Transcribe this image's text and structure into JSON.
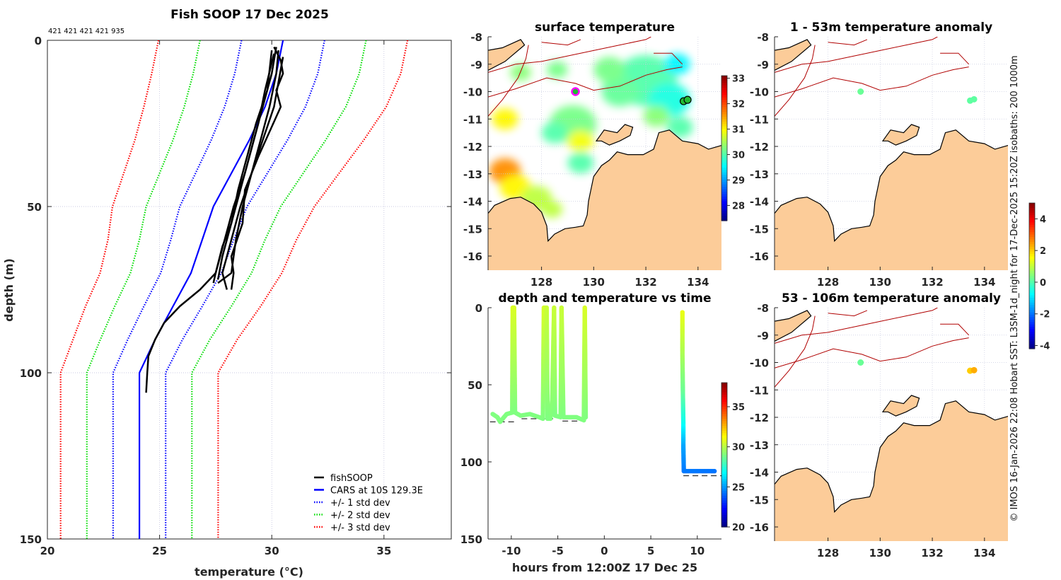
{
  "figure": {
    "side_note": "© IMOS 16-Jan-2026 22:08 Hobart SST: L3SM-1d_night for 17-Dec-2025 15:20Z isobaths: 200  1000m"
  },
  "chart_data": [
    {
      "id": "profile",
      "type": "line",
      "title": "Fish SOOP 17 Dec 2025",
      "annotation": "421 421 421 421 935",
      "xlabel": "temperature (°C)",
      "xlabel_main": "temperature (",
      "xlabel_sup": "o",
      "xlabel_unit": "C)",
      "ylabel": "depth (m)",
      "xlim": [
        20,
        38
      ],
      "ylim": [
        0,
        150
      ],
      "y_reversed": true,
      "xticks": [
        "20",
        "25",
        "30",
        "35"
      ],
      "yticks": [
        "0",
        "50",
        "100",
        "150"
      ],
      "grid": true,
      "legend_position": "bottom-right",
      "legend": [
        "fishSOOP",
        "CARS at 10S 129.3E",
        "+/- 1 std dev",
        "+/- 2 std dev",
        "+/- 3 std dev"
      ],
      "colors": {
        "fishsoop": "#000000",
        "cars": "#0000ff",
        "std1": "#0000ff",
        "std2": "#00dd00",
        "std3": "#ff0000"
      },
      "cars": {
        "depth": [
          0,
          10,
          20,
          30,
          40,
          50,
          60,
          70,
          80,
          90,
          100,
          150
        ],
        "mean": [
          30.5,
          30.2,
          29.7,
          29.0,
          28.2,
          27.4,
          26.9,
          26.4,
          25.6,
          24.8,
          24.1,
          24.1
        ],
        "std": [
          1.85,
          1.85,
          1.8,
          1.7,
          1.6,
          1.5,
          1.4,
          1.35,
          1.3,
          1.22,
          1.17,
          1.17
        ]
      },
      "fishsoop_profiles": [
        {
          "depth": [
            2,
            10,
            20,
            30,
            40,
            50,
            55,
            60,
            65,
            70,
            73
          ],
          "temp": [
            30.2,
            30.0,
            29.6,
            29.2,
            28.8,
            28.3,
            28.1,
            27.9,
            27.7,
            27.5,
            27.4
          ]
        },
        {
          "depth": [
            3,
            10,
            20,
            30,
            40,
            50,
            60,
            70,
            75
          ],
          "temp": [
            30.3,
            30.2,
            29.9,
            29.5,
            29.1,
            28.6,
            28.2,
            27.8,
            28.0
          ]
        },
        {
          "depth": [
            4,
            15,
            25,
            35,
            45,
            55,
            65,
            72
          ],
          "temp": [
            30.1,
            29.7,
            29.4,
            29.0,
            28.6,
            28.2,
            27.8,
            27.6
          ]
        },
        {
          "depth": [
            5,
            20,
            30,
            40,
            50,
            60,
            70,
            73
          ],
          "temp": [
            30.5,
            30.1,
            29.6,
            29.1,
            28.7,
            28.4,
            28.2,
            27.6
          ]
        },
        {
          "depth": [
            2,
            6,
            10,
            15,
            20,
            35,
            45,
            55,
            65,
            70,
            75
          ],
          "temp": [
            30.1,
            30.4,
            30.5,
            30.2,
            30.4,
            29.4,
            28.8,
            28.7,
            28.2,
            28.3,
            28.2
          ]
        },
        {
          "depth": [
            3,
            15,
            25,
            35,
            45,
            55,
            62,
            70,
            75,
            80,
            85,
            90,
            95,
            100,
            106
          ],
          "temp": [
            30.0,
            29.8,
            29.3,
            28.9,
            28.5,
            28.2,
            27.8,
            27.5,
            26.8,
            25.9,
            25.2,
            24.8,
            24.5,
            24.45,
            24.4
          ]
        }
      ]
    },
    {
      "id": "sst_map",
      "type": "heatmap",
      "title": "surface temperature",
      "xlim": [
        125.95,
        134.9
      ],
      "ylim": [
        -16.5,
        -8
      ],
      "xticks": [
        "128",
        "130",
        "132",
        "134"
      ],
      "yticks": [
        "-8",
        "-9",
        "-10",
        "-11",
        "-12",
        "-13",
        "-14",
        "-15",
        "-16"
      ],
      "colorbar": {
        "range": [
          27.4,
          33.1
        ],
        "ticks": [
          "28",
          "29",
          "30",
          "31",
          "32",
          "33"
        ]
      },
      "sst_patches": [
        [
          132.0,
          -9.6,
          1.2,
          30.0
        ],
        [
          132.9,
          -10.3,
          0.8,
          29.7
        ],
        [
          133.2,
          -9.0,
          0.5,
          29.5
        ],
        [
          131.0,
          -10.0,
          0.7,
          30.1
        ],
        [
          130.6,
          -9.2,
          0.6,
          30.2
        ],
        [
          129.2,
          -11.2,
          0.9,
          30.2
        ],
        [
          129.5,
          -11.8,
          0.5,
          30.9
        ],
        [
          128.5,
          -11.5,
          0.5,
          30.0
        ],
        [
          129.5,
          -12.6,
          0.5,
          30.0
        ],
        [
          126.6,
          -12.9,
          0.6,
          31.6
        ],
        [
          127.0,
          -13.5,
          0.6,
          31.0
        ],
        [
          126.6,
          -11.0,
          0.5,
          31.0
        ],
        [
          127.8,
          -13.9,
          0.6,
          30.6
        ],
        [
          128.4,
          -14.3,
          0.4,
          30.6
        ],
        [
          127.2,
          -9.3,
          0.4,
          30.3
        ],
        [
          128.6,
          -9.2,
          0.4,
          30.2
        ],
        [
          133.3,
          -11.3,
          0.5,
          30.0
        ],
        [
          132.4,
          -10.9,
          0.5,
          30.3
        ]
      ],
      "markers": [
        {
          "lon": 129.3,
          "lat": -10.0,
          "color": "#ff00ff"
        },
        {
          "lon": 133.45,
          "lat": -10.35,
          "color": "#000000"
        },
        {
          "lon": 133.6,
          "lat": -10.3,
          "color": "#000000"
        }
      ]
    },
    {
      "id": "depth_time",
      "type": "scatter",
      "title": "depth and temperature vs time",
      "xlabel": "hours from 12:00Z 17 Dec 25",
      "xlim": [
        -12.5,
        12.6
      ],
      "ylim": [
        0,
        150
      ],
      "y_reversed": true,
      "xticks": [
        "-10",
        "-5",
        "0",
        "5",
        "10"
      ],
      "yticks": [
        "0",
        "50",
        "100",
        "150"
      ],
      "colorbar": {
        "range": [
          20,
          38
        ],
        "ticks": [
          "20",
          "25",
          "30",
          "35"
        ]
      },
      "track_segments": [
        [
          [
            -12.0,
            69,
            29.0
          ],
          [
            -11.5,
            71,
            29.0
          ],
          [
            -11.2,
            74,
            29.0
          ],
          [
            -10.5,
            69,
            29.0
          ],
          [
            -9.9,
            68,
            29.0
          ],
          [
            -9.85,
            0,
            30.6
          ],
          [
            -9.7,
            0,
            30.6
          ],
          [
            -9.6,
            68,
            29.0
          ],
          [
            -9.0,
            70,
            29.0
          ],
          [
            -8.0,
            69,
            29.0
          ],
          [
            -7.0,
            71,
            29.0
          ],
          [
            -6.6,
            72,
            29.0
          ],
          [
            -6.5,
            0,
            30.5
          ],
          [
            -6.2,
            0,
            30.3
          ],
          [
            -6.1,
            72,
            29.0
          ],
          [
            -5.8,
            72,
            29.0
          ],
          [
            -5.6,
            60,
            29.2
          ],
          [
            -5.4,
            0,
            30.3
          ],
          [
            -5.3,
            70,
            29.0
          ],
          [
            -4.7,
            71,
            29.0
          ],
          [
            -4.6,
            0,
            30.3
          ],
          [
            -4.4,
            71,
            29.0
          ],
          [
            -3.0,
            71,
            29.0
          ],
          [
            -2.2,
            73,
            29.0
          ],
          [
            -2.1,
            0,
            30.6
          ],
          [
            -2.0,
            72,
            29.0
          ]
        ],
        [
          [
            8.4,
            3,
            30.9
          ],
          [
            8.4,
            30,
            29.8
          ],
          [
            8.45,
            55,
            28.6
          ],
          [
            8.5,
            75,
            27.0
          ],
          [
            8.5,
            90,
            25.2
          ],
          [
            8.55,
            106,
            24.4
          ],
          [
            12.0,
            106,
            24.3
          ]
        ]
      ],
      "bottom_depth_lines": [
        [
          -12.3,
          -9.5,
          74
        ],
        [
          -8.9,
          -5.5,
          72
        ],
        [
          -4.5,
          -2.0,
          73.5
        ],
        [
          8.5,
          12.6,
          109
        ]
      ]
    },
    {
      "id": "anom_1_53",
      "type": "scatter",
      "title": "1 - 53m temperature anomaly",
      "xticks": [
        "128",
        "130",
        "132",
        "134"
      ],
      "yticks": [
        "-8",
        "-9",
        "-10",
        "-11",
        "-12",
        "-13",
        "-14",
        "-15",
        "-16"
      ],
      "points": [
        {
          "lon": 129.25,
          "lat": -10.0,
          "anom": 0.2
        },
        {
          "lon": 133.45,
          "lat": -10.33,
          "anom": 0.1
        },
        {
          "lon": 133.6,
          "lat": -10.28,
          "anom": 0.1
        }
      ]
    },
    {
      "id": "anom_53_106",
      "type": "scatter",
      "title": "53 - 106m temperature anomaly",
      "xticks": [
        "128",
        "130",
        "132",
        "134"
      ],
      "yticks": [
        "-8",
        "-9",
        "-10",
        "-11",
        "-12",
        "-13",
        "-14",
        "-15",
        "-16"
      ],
      "colorbar": {
        "range": [
          -4.2,
          5
        ],
        "ticks": [
          "4",
          "2",
          "0",
          "-2",
          "-4"
        ]
      },
      "points": [
        {
          "lon": 129.25,
          "lat": -10.0,
          "anom": 0.2
        },
        {
          "lon": 133.45,
          "lat": -10.3,
          "anom": 2.0
        },
        {
          "lon": 133.6,
          "lat": -10.28,
          "anom": 2.3
        }
      ]
    }
  ],
  "geography": {
    "land_color": "#fccc99",
    "isobath_color": "#b00000",
    "mainland": [
      [
        125.9,
        -14.5
      ],
      [
        126.2,
        -14.15
      ],
      [
        126.8,
        -13.9
      ],
      [
        127.2,
        -13.85
      ],
      [
        127.7,
        -14.1
      ],
      [
        128.0,
        -14.4
      ],
      [
        128.2,
        -14.9
      ],
      [
        128.25,
        -15.45
      ],
      [
        128.5,
        -15.2
      ],
      [
        128.9,
        -15.0
      ],
      [
        129.3,
        -14.95
      ],
      [
        129.6,
        -14.9
      ],
      [
        129.75,
        -14.5
      ],
      [
        129.8,
        -14.0
      ],
      [
        130.0,
        -13.1
      ],
      [
        130.3,
        -12.7
      ],
      [
        130.6,
        -12.5
      ],
      [
        130.9,
        -12.2
      ],
      [
        131.3,
        -12.3
      ],
      [
        131.9,
        -12.3
      ],
      [
        132.3,
        -12.1
      ],
      [
        132.5,
        -11.5
      ],
      [
        132.9,
        -11.4
      ],
      [
        133.4,
        -11.8
      ],
      [
        134.0,
        -11.9
      ],
      [
        134.4,
        -12.1
      ],
      [
        134.95,
        -11.95
      ],
      [
        134.95,
        -16.6
      ],
      [
        125.9,
        -16.6
      ]
    ],
    "islands": [
      [
        [
          130.1,
          -11.8
        ],
        [
          130.4,
          -11.4
        ],
        [
          130.9,
          -11.5
        ],
        [
          131.2,
          -11.2
        ],
        [
          131.5,
          -11.3
        ],
        [
          131.4,
          -11.6
        ],
        [
          131.0,
          -11.8
        ],
        [
          130.6,
          -11.95
        ],
        [
          130.3,
          -11.8
        ]
      ],
      [
        [
          125.9,
          -8.5
        ],
        [
          126.5,
          -8.4
        ],
        [
          127.2,
          -8.1
        ],
        [
          127.35,
          -8.3
        ],
        [
          126.6,
          -8.9
        ],
        [
          125.9,
          -9.25
        ]
      ]
    ],
    "isobaths": [
      [
        [
          125.95,
          -10.2
        ],
        [
          127.0,
          -9.9
        ],
        [
          128.2,
          -9.5
        ],
        [
          129.3,
          -9.7
        ],
        [
          130.0,
          -9.95
        ],
        [
          131.0,
          -9.8
        ],
        [
          132.0,
          -9.4
        ],
        [
          132.8,
          -9.2
        ],
        [
          133.4,
          -9.1
        ]
      ],
      [
        [
          125.95,
          -9.3
        ],
        [
          127.0,
          -9.0
        ],
        [
          128.0,
          -8.9
        ],
        [
          129.0,
          -8.7
        ],
        [
          130.0,
          -8.5
        ],
        [
          131.0,
          -8.3
        ],
        [
          132.0,
          -8.1
        ],
        [
          132.2,
          -8.0
        ]
      ],
      [
        [
          125.95,
          -10.9
        ],
        [
          126.5,
          -10.3
        ],
        [
          127.1,
          -9.5
        ],
        [
          127.4,
          -8.8
        ],
        [
          127.5,
          -8.3
        ]
      ],
      [
        [
          128.0,
          -8.2
        ],
        [
          129.0,
          -8.3
        ],
        [
          129.5,
          -8.1
        ]
      ],
      [
        [
          132.3,
          -8.6
        ],
        [
          133.0,
          -8.6
        ],
        [
          133.4,
          -9.0
        ]
      ]
    ]
  }
}
